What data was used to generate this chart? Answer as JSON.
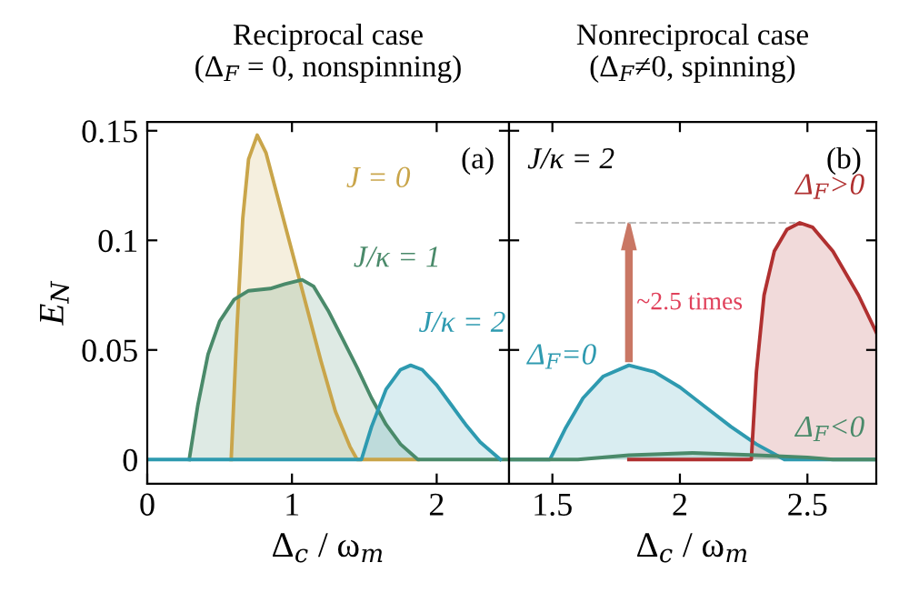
{
  "chart_data": [
    {
      "type": "line",
      "title": "Reciprocal case\n(Δ$_{F}$ = 0, nonspinning)",
      "xlabel": "Δ$_{c}$ / ω$_{m}$",
      "ylabel": "E$_{N}$",
      "xlim": [
        0,
        2.5
      ],
      "xticks": [
        0,
        1,
        2
      ],
      "ylim": [
        -0.011,
        0.154
      ],
      "yticks": [
        0,
        0.05,
        0.1,
        0.15
      ],
      "annotations": [
        "(a)"
      ],
      "legend": false,
      "grid": false,
      "series": [
        {
          "name": "J = 0",
          "color": "#c9a54a",
          "x": [
            0.58,
            0.62,
            0.66,
            0.7,
            0.76,
            0.82,
            0.9,
            1.0,
            1.1,
            1.2,
            1.3,
            1.4,
            1.45,
            1.87
          ],
          "values": [
            0,
            0.06,
            0.11,
            0.137,
            0.148,
            0.14,
            0.12,
            0.095,
            0.07,
            0.045,
            0.022,
            0.006,
            0,
            0
          ]
        },
        {
          "name": "J/κ = 1",
          "color": "#4a8a6a",
          "x": [
            0.29,
            0.35,
            0.42,
            0.5,
            0.6,
            0.7,
            0.85,
            0.95,
            1.07,
            1.15,
            1.25,
            1.35,
            1.45,
            1.55,
            1.65,
            1.75,
            1.87,
            2.5
          ],
          "values": [
            0,
            0.025,
            0.048,
            0.063,
            0.073,
            0.077,
            0.078,
            0.08,
            0.082,
            0.079,
            0.068,
            0.055,
            0.042,
            0.028,
            0.016,
            0.007,
            0,
            0
          ]
        },
        {
          "name": "J/κ = 2",
          "color": "#2e9ab0",
          "x": [
            0,
            1.48,
            1.55,
            1.65,
            1.75,
            1.82,
            1.9,
            2.0,
            2.1,
            2.2,
            2.3,
            2.44
          ],
          "values": [
            0,
            0,
            0.015,
            0.032,
            0.041,
            0.043,
            0.041,
            0.034,
            0.025,
            0.016,
            0.008,
            0
          ]
        }
      ]
    },
    {
      "type": "line",
      "title": "Nonreciprocal case\n(Δ$_{F}$≠0, spinning)",
      "xlabel": "Δ$_{c}$ / ω$_{m}$",
      "xlim": [
        1.33,
        2.77
      ],
      "xticks": [
        1.5,
        2,
        2.5
      ],
      "ylim": [
        -0.011,
        0.154
      ],
      "yticks": [
        0,
        0.05,
        0.1,
        0.15
      ],
      "tick_labels": "x",
      "annotations": [
        "(b)",
        "J/κ = 2",
        {
          "text": "~2.5 times",
          "x": 1.8,
          "y": 0.108
        }
      ],
      "legend": false,
      "grid": false,
      "ref_lines": [
        {
          "axis": "y",
          "value": 0.108,
          "label": null,
          "color": "#bbbbbb",
          "line_style": "dashed"
        }
      ],
      "series": [
        {
          "name": "Δ$_{F}$=0",
          "color": "#2e9ab0",
          "x": [
            1.33,
            1.49,
            1.55,
            1.62,
            1.7,
            1.8,
            1.9,
            2.0,
            2.1,
            2.2,
            2.3,
            2.41,
            2.77
          ],
          "values": [
            0,
            0,
            0.014,
            0.028,
            0.038,
            0.043,
            0.04,
            0.033,
            0.024,
            0.015,
            0.007,
            0,
            0
          ]
        },
        {
          "name": "Δ$_{F}$>0",
          "color": "#b03030",
          "x": [
            1.8,
            2.28,
            2.3,
            2.33,
            2.37,
            2.42,
            2.47,
            2.52,
            2.6,
            2.7,
            2.77
          ],
          "values": [
            0,
            0,
            0.04,
            0.075,
            0.095,
            0.105,
            0.108,
            0.106,
            0.095,
            0.075,
            0.058
          ]
        },
        {
          "name": "Δ$_{F}$<0",
          "color": "#4a8a6a",
          "x": [
            1.33,
            1.6,
            1.8,
            2.05,
            2.3,
            2.5,
            2.6,
            2.77
          ],
          "values": [
            0,
            0,
            0.002,
            0.003,
            0.002,
            0.001,
            0,
            0
          ]
        }
      ]
    }
  ]
}
